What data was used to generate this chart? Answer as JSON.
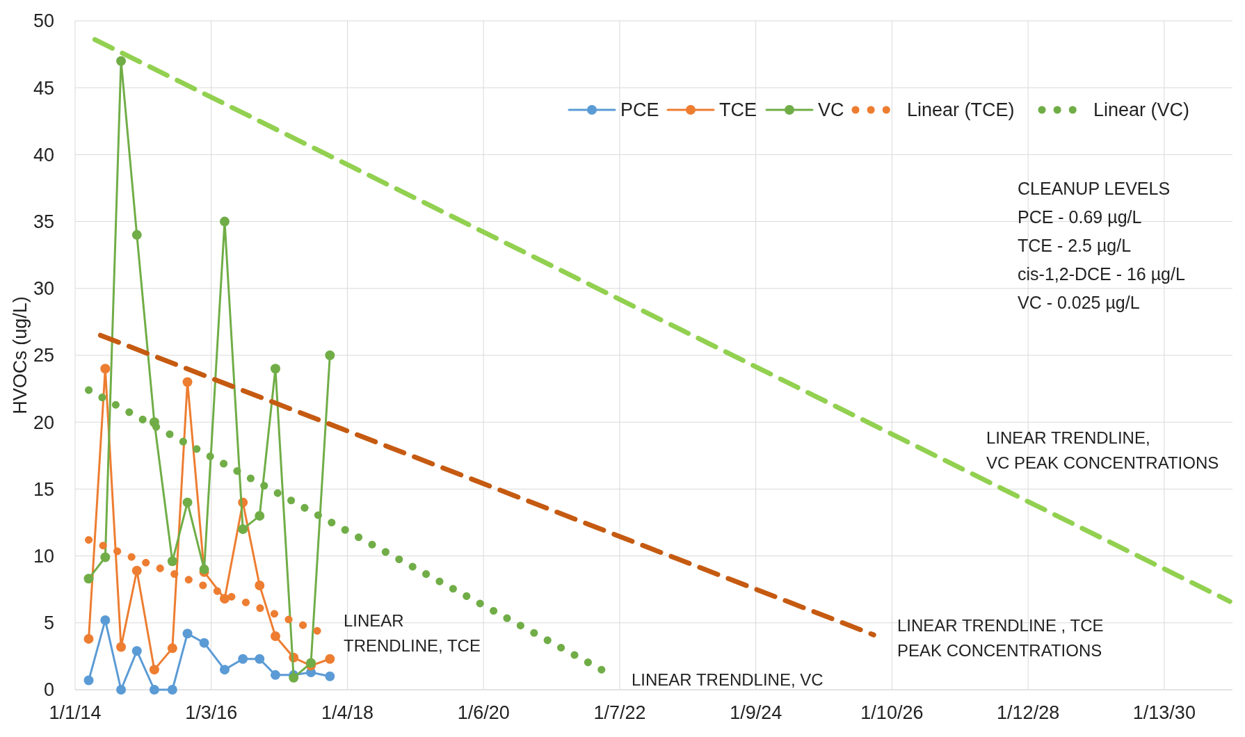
{
  "chart_data": {
    "type": "line",
    "ylabel": "HVOCs (ug/L)",
    "xlim": [
      "2014-01-01",
      "2031-01-15"
    ],
    "ylim": [
      0,
      50
    ],
    "yticks": [
      0,
      5,
      10,
      15,
      20,
      25,
      30,
      35,
      40,
      45,
      50
    ],
    "xticks": [
      {
        "value": "2014-01-01",
        "label": "1/1/14"
      },
      {
        "value": "2016-01-03",
        "label": "1/3/16"
      },
      {
        "value": "2018-01-04",
        "label": "1/4/18"
      },
      {
        "value": "2020-01-06",
        "label": "1/6/20"
      },
      {
        "value": "2022-01-07",
        "label": "1/7/22"
      },
      {
        "value": "2024-01-09",
        "label": "1/9/24"
      },
      {
        "value": "2026-01-10",
        "label": "1/10/26"
      },
      {
        "value": "2028-01-12",
        "label": "1/12/28"
      },
      {
        "value": "2030-01-13",
        "label": "1/13/30"
      }
    ],
    "grid": true,
    "legend": "top right",
    "marker": "circle",
    "line_style": "solid",
    "x": [
      "2014-03-15",
      "2014-06-12",
      "2014-09-05",
      "2014-11-29",
      "2015-03-03",
      "2015-06-08",
      "2015-08-28",
      "2015-11-26",
      "2016-03-15",
      "2016-06-21",
      "2016-09-19",
      "2016-12-13",
      "2017-03-21",
      "2017-06-22",
      "2017-10-02"
    ],
    "series": [
      {
        "name": "PCE",
        "color": "#5b9bd5",
        "values": [
          0.7,
          5.2,
          0,
          2.9,
          0,
          0,
          4.2,
          3.5,
          1.5,
          2.3,
          2.3,
          1.1,
          1.1,
          1.3,
          1.0
        ]
      },
      {
        "name": "TCE",
        "color": "#ed7d31",
        "values": [
          3.8,
          24,
          3.2,
          8.9,
          1.5,
          3.1,
          23,
          8.8,
          6.8,
          14,
          7.8,
          4.0,
          2.4,
          1.8,
          2.3
        ]
      },
      {
        "name": "VC",
        "color": "#70ad47",
        "values": [
          8.3,
          9.9,
          47,
          34,
          20,
          9.6,
          14,
          9,
          35,
          12,
          13,
          24,
          0.9,
          2,
          25
        ]
      },
      {
        "name": "Linear (TCE)",
        "color": "#ed7d31",
        "marker": "none",
        "line_style": "dotted",
        "x": [
          "2014-03-15",
          "2017-07-26"
        ],
        "values": [
          11.2,
          4.4
        ]
      },
      {
        "name": "Linear (VC)",
        "color": "#70ad47",
        "marker": "none",
        "line_style": "dotted",
        "x": [
          "2014-03-15",
          "2021-10-14"
        ],
        "values": [
          22.4,
          1.4
        ]
      },
      {
        "color": "#92d050",
        "marker": "none",
        "line_style": "dashed",
        "x": [
          "2014-04-17",
          "2031-01-01"
        ],
        "values": [
          48.6,
          6.6
        ]
      },
      {
        "color": "#c55a11",
        "marker": "none",
        "line_style": "dashed",
        "x": [
          "2014-05-17",
          "2025-10-04"
        ],
        "values": [
          26.5,
          4.1
        ]
      }
    ],
    "annotations": [
      "CLEANUP LEVELS",
      "PCE - 0.69 µg/L",
      "TCE - 2.5 µg/L",
      "cis-1,2-DCE - 16  µg/L",
      "VC - 0.025 µg/L",
      "LINEAR\nTRENDLINE, TCE",
      "LINEAR TRENDLINE, VC",
      "LINEAR TRENDLINE , TCE\nPEAK CONCENTRATIONS",
      "LINEAR TRENDLINE,\nVC PEAK CONCENTRATIONS"
    ]
  }
}
